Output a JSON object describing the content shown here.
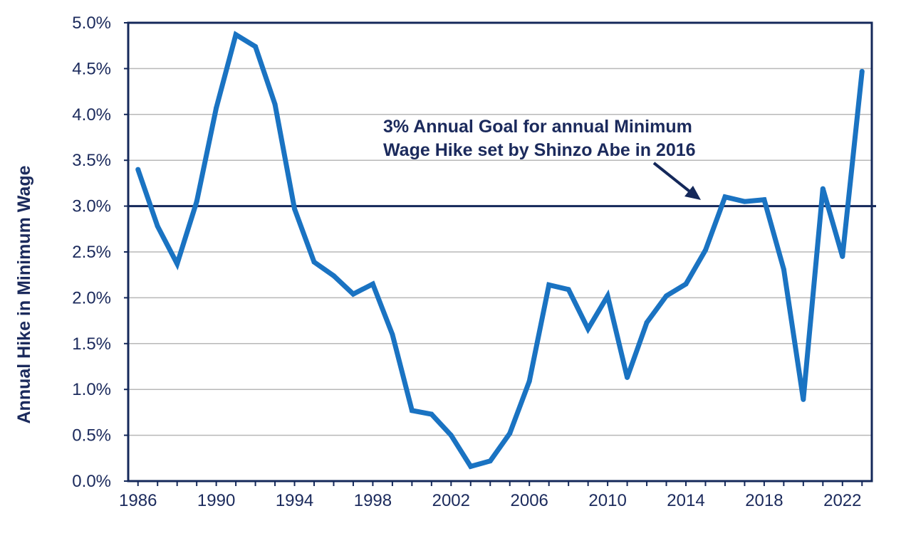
{
  "chart_data": {
    "type": "line",
    "title": "",
    "xlabel": "",
    "ylabel": "Annual Hike in Minimum Wage",
    "x": [
      1986,
      1987,
      1988,
      1989,
      1990,
      1991,
      1992,
      1993,
      1994,
      1995,
      1996,
      1997,
      1998,
      1999,
      2000,
      2001,
      2002,
      2003,
      2004,
      2005,
      2006,
      2007,
      2008,
      2009,
      2010,
      2011,
      2012,
      2013,
      2014,
      2015,
      2016,
      2017,
      2018,
      2019,
      2020,
      2021,
      2022,
      2023
    ],
    "series": [
      {
        "name": "",
        "values": [
          3.4,
          2.78,
          2.37,
          3.05,
          4.07,
          4.87,
          4.74,
          4.11,
          2.97,
          2.39,
          2.24,
          2.04,
          2.15,
          1.6,
          0.77,
          0.73,
          0.5,
          0.16,
          0.22,
          0.52,
          1.09,
          2.14,
          2.09,
          1.66,
          2.02,
          1.13,
          1.73,
          2.02,
          2.15,
          2.52,
          3.1,
          3.05,
          3.07,
          2.31,
          0.89,
          3.19,
          2.45,
          4.47
        ]
      }
    ],
    "reference_line": {
      "value": 3.0
    },
    "annotation": {
      "lines": [
        "3% Annual Goal for annual Minimum",
        "Wage Hike set by Shinzo Abe in 2016"
      ]
    },
    "ylim": [
      0,
      5
    ],
    "xlim": [
      1985.5,
      2023.5
    ],
    "yticks": [
      0,
      0.5,
      1,
      1.5,
      2,
      2.5,
      3,
      3.5,
      4,
      4.5,
      5
    ],
    "ytick_labels": [
      "0.0%",
      "0.5%",
      "1.0%",
      "1.5%",
      "2.0%",
      "2.5%",
      "3.0%",
      "3.5%",
      "4.0%",
      "4.5%",
      "5.0%"
    ],
    "xticks": [
      1986,
      1990,
      1994,
      1998,
      2002,
      2006,
      2010,
      2014,
      2018,
      2022
    ],
    "xtick_labels": [
      "1986",
      "1990",
      "1994",
      "1998",
      "2002",
      "2006",
      "2010",
      "2014",
      "2018",
      "2022"
    ],
    "grid": true,
    "colors": {
      "line": "#1a73c2",
      "reference": "#14285a",
      "text": "#1b2a5c",
      "grid": "#b8b8b8",
      "frame": "#14285a"
    }
  }
}
